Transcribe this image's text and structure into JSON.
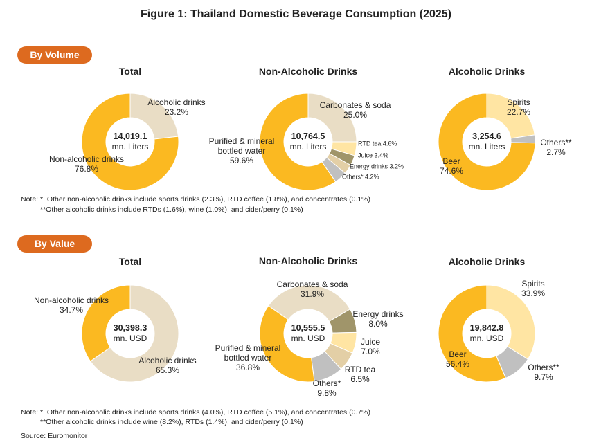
{
  "title": "Figure 1: Thailand Domestic Beverage Consumption (2025)",
  "sections": [
    {
      "label": "By Volume",
      "notes": [
        "Note: *  Other non-alcoholic drinks include sports drinks (2.3%), RTD coffee (1.8%), and concentrates (0.1%)",
        "**Other alcoholic drinks include RTDs (1.6%), wine (1.0%), and cider/perry (0.1%)"
      ]
    },
    {
      "label": "By Value",
      "notes": [
        "Note: *  Other non-alcoholic drinks include sports drinks (4.0%), RTD coffee (5.1%), and concentrates (0.7%)",
        "**Other alcoholic drinks include wine (8.2%), RTDs (1.4%), and cider/perry (0.1%)"
      ]
    }
  ],
  "source": "Source: Euromonitor",
  "chart_data": [
    {
      "type": "pie",
      "title": "Total",
      "total": {
        "value": 14019.1,
        "label": "14,019.1"
      },
      "unit": "mn. Liters",
      "categories": [
        "Alcoholic drinks",
        "Non-alcoholic drinks"
      ],
      "values": [
        23.2,
        76.8
      ],
      "value_labels": [
        "23.2%",
        "76.8%"
      ],
      "colors": [
        "#E9DDC5",
        "#FBB921"
      ]
    },
    {
      "type": "pie",
      "title": "Non-Alcoholic Drinks",
      "total": {
        "value": 10764.5,
        "label": "10,764.5"
      },
      "unit": "mn. Liters",
      "categories": [
        "Carbonates & soda",
        "RTD tea",
        "Juice",
        "Energy drinks",
        "Others*",
        "Purified & mineral bottled water"
      ],
      "values": [
        25.0,
        4.6,
        3.4,
        3.2,
        4.2,
        59.6
      ],
      "value_labels": [
        "25.0%",
        "4.6%",
        "3.4%",
        "3.2%",
        "4.2%",
        "59.6%"
      ],
      "colors": [
        "#E9DDC5",
        "#FFE5A3",
        "#A0956A",
        "#E3CFA6",
        "#C0C0C0",
        "#FBB921"
      ]
    },
    {
      "type": "pie",
      "title": "Alcoholic Drinks",
      "total": {
        "value": 3254.6,
        "label": "3,254.6"
      },
      "unit": "mn. Liters",
      "categories": [
        "Spirits",
        "Others**",
        "Beer"
      ],
      "values": [
        22.7,
        2.7,
        74.6
      ],
      "value_labels": [
        "22.7%",
        "2.7%",
        "74.6%"
      ],
      "colors": [
        "#FFE5A3",
        "#C0C0C0",
        "#FBB921"
      ]
    },
    {
      "type": "pie",
      "title": "Total",
      "total": {
        "value": 30398.3,
        "label": "30,398.3"
      },
      "unit": "mn. USD",
      "categories": [
        "Alcoholic drinks",
        "Non-alcoholic drinks"
      ],
      "values": [
        65.3,
        34.7
      ],
      "value_labels": [
        "65.3%",
        "34.7%"
      ],
      "colors": [
        "#E9DDC5",
        "#FBB921"
      ]
    },
    {
      "type": "pie",
      "title": "Non-Alcoholic Drinks",
      "total": {
        "value": 10555.5,
        "label": "10,555.5"
      },
      "unit": "mn. USD",
      "categories": [
        "Carbonates & soda",
        "Energy drinks",
        "Juice",
        "RTD tea",
        "Others*",
        "Purified & mineral bottled water"
      ],
      "values": [
        31.9,
        8.0,
        7.0,
        6.5,
        9.8,
        36.8
      ],
      "value_labels": [
        "31.9%",
        "8.0%",
        "7.0%",
        "6.5%",
        "9.8%",
        "36.8%"
      ],
      "colors": [
        "#E9DDC5",
        "#A0956A",
        "#FFE5A3",
        "#E3CFA6",
        "#C0C0C0",
        "#FBB921"
      ]
    },
    {
      "type": "pie",
      "title": "Alcoholic Drinks",
      "total": {
        "value": 19842.8,
        "label": "19,842.8"
      },
      "unit": "mn. USD",
      "categories": [
        "Spirits",
        "Others**",
        "Beer"
      ],
      "values": [
        33.9,
        9.7,
        56.4
      ],
      "value_labels": [
        "33.9%",
        "9.7%",
        "56.4%"
      ],
      "colors": [
        "#FFE5A3",
        "#C0C0C0",
        "#FBB921"
      ]
    }
  ]
}
